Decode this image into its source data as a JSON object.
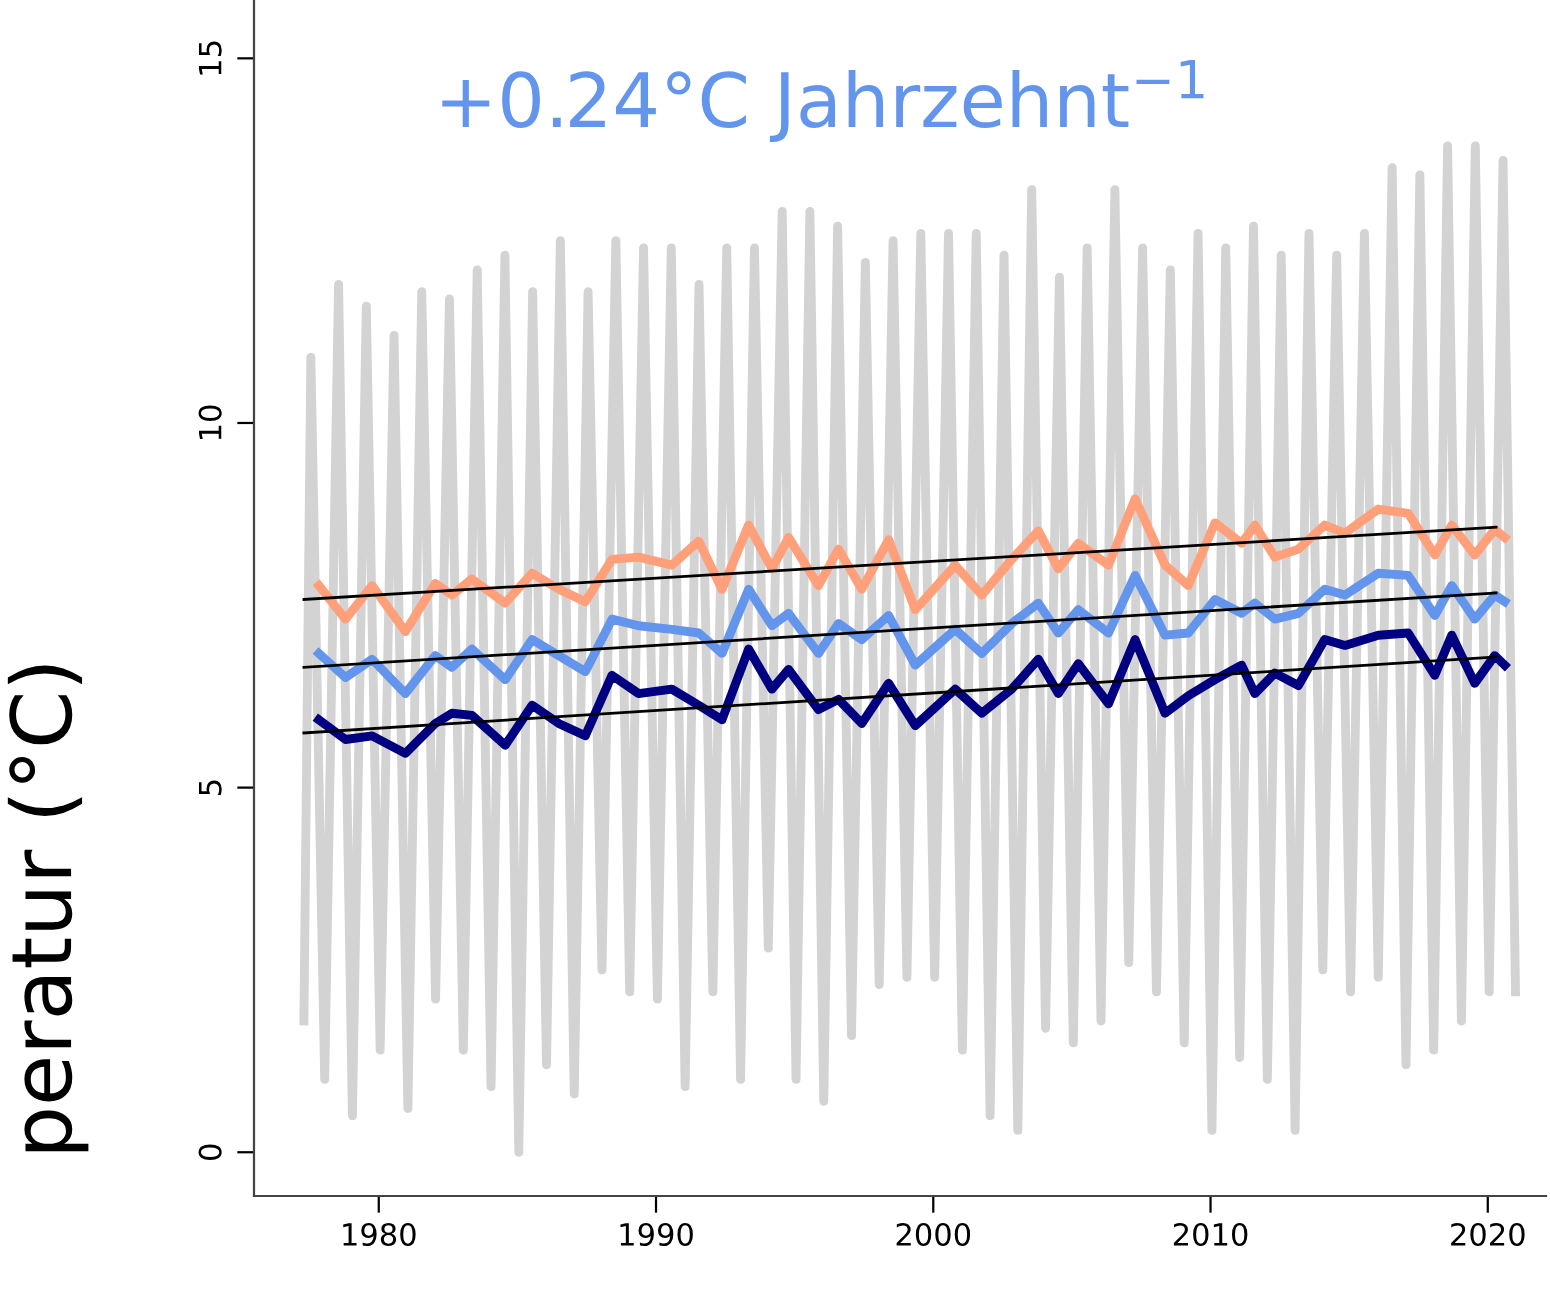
{
  "chart_data": {
    "type": "line",
    "ylabel": "peratur (°C)",
    "annotations": [
      "+0.24°C Jahrzehnt$^{−1}$"
    ],
    "xlim": [
      1975.5,
      2022.1
    ],
    "ylim": [
      -0.6,
      15.8
    ],
    "xticks": [
      1980,
      1990,
      2000,
      2010,
      2020
    ],
    "yticks": [
      0,
      5,
      10,
      15
    ],
    "series": [
      {
        "color": "#d3d3d3",
        "x": [
          1977.3,
          1977.55,
          1978.05,
          1978.55,
          1979.05,
          1979.55,
          1980.05,
          1980.55,
          1981.05,
          1981.55,
          1982.05,
          1982.55,
          1983.05,
          1983.55,
          1984.05,
          1984.55,
          1985.05,
          1985.55,
          1986.05,
          1986.55,
          1987.05,
          1987.55,
          1988.05,
          1988.55,
          1989.05,
          1989.55,
          1990.05,
          1990.55,
          1991.05,
          1991.55,
          1992.05,
          1992.55,
          1993.05,
          1993.55,
          1994.05,
          1994.55,
          1995.05,
          1995.55,
          1996.05,
          1996.55,
          1997.05,
          1997.55,
          1998.05,
          1998.55,
          1999.05,
          1999.55,
          2000.05,
          2000.55,
          2001.05,
          2001.55,
          2002.05,
          2002.55,
          2003.05,
          2003.55,
          2004.05,
          2004.55,
          2005.05,
          2005.55,
          2006.05,
          2006.55,
          2007.05,
          2007.55,
          2008.05,
          2008.55,
          2009.05,
          2009.55,
          2010.05,
          2010.55,
          2011.05,
          2011.55,
          2012.05,
          2012.55,
          2013.05,
          2013.55,
          2014.05,
          2014.55,
          2015.05,
          2015.55,
          2016.05,
          2016.55,
          2017.05,
          2017.55,
          2018.05,
          2018.55,
          2019.05,
          2019.55,
          2020.05,
          2020.55,
          2021.0
        ],
        "values": [
          1.8,
          10.9,
          1.0,
          11.9,
          0.5,
          11.6,
          1.4,
          11.2,
          0.6,
          11.8,
          2.1,
          11.7,
          1.4,
          12.1,
          0.9,
          12.3,
          0.0,
          11.8,
          1.2,
          12.5,
          0.8,
          11.8,
          2.5,
          12.5,
          2.2,
          12.4,
          2.1,
          12.4,
          0.9,
          11.9,
          2.2,
          12.4,
          1.0,
          12.4,
          2.8,
          12.9,
          1.0,
          12.9,
          0.7,
          12.7,
          1.6,
          12.2,
          2.3,
          12.5,
          2.4,
          12.6,
          2.4,
          12.6,
          1.4,
          12.6,
          0.5,
          12.3,
          0.3,
          13.2,
          1.7,
          12.0,
          1.5,
          12.4,
          1.8,
          13.2,
          2.6,
          12.4,
          2.2,
          12.1,
          1.5,
          12.6,
          0.3,
          12.4,
          1.3,
          12.7,
          1.0,
          12.3,
          0.3,
          12.6,
          2.5,
          12.3,
          2.2,
          12.6,
          2.4,
          13.5,
          1.2,
          13.4,
          1.4,
          13.8,
          1.8,
          13.8,
          2.2,
          13.6,
          2.2
        ]
      },
      {
        "color": "#ffa07a",
        "x": [
          1977.84,
          1978.8,
          1979.76,
          1980.96,
          1982.04,
          1982.64,
          1983.36,
          1984.56,
          1985.53,
          1986.49,
          1987.45,
          1988.41,
          1989.37,
          1990.57,
          1991.54,
          1992.38,
          1993.34,
          1994.18,
          1994.78,
          1995.86,
          1996.58,
          1997.42,
          1998.39,
          1999.35,
          2000.79,
          2001.75,
          2002.83,
          2003.79,
          2004.51,
          2005.23,
          2006.32,
          2007.28,
          2008.36,
          2009.2,
          2010.16,
          2011.12,
          2011.6,
          2012.32,
          2013.17,
          2014.12,
          2014.85,
          2016.05,
          2017.13,
          2018.09,
          2018.7,
          2019.53,
          2020.25,
          2020.61
        ],
        "values": [
          7.77,
          7.31,
          7.77,
          7.14,
          7.8,
          7.64,
          7.86,
          7.53,
          7.94,
          7.72,
          7.55,
          8.13,
          8.16,
          8.05,
          8.38,
          7.72,
          8.6,
          8.0,
          8.43,
          7.77,
          8.27,
          7.72,
          8.4,
          7.44,
          8.05,
          7.64,
          8.13,
          8.52,
          8.0,
          8.35,
          8.05,
          8.96,
          8.05,
          7.77,
          8.63,
          8.35,
          8.6,
          8.16,
          8.27,
          8.6,
          8.49,
          8.82,
          8.76,
          8.19,
          8.6,
          8.19,
          8.54,
          8.43
        ]
      },
      {
        "color": "#6495ed",
        "x": [
          1977.84,
          1978.8,
          1979.76,
          1980.96,
          1982.04,
          1982.64,
          1983.36,
          1984.56,
          1985.53,
          1986.49,
          1987.45,
          1988.41,
          1989.37,
          1990.57,
          1991.54,
          1992.38,
          1993.34,
          1994.18,
          1994.78,
          1995.86,
          1996.58,
          1997.42,
          1998.39,
          1999.35,
          2000.79,
          2001.75,
          2002.83,
          2003.79,
          2004.51,
          2005.23,
          2006.32,
          2007.28,
          2008.36,
          2009.2,
          2010.16,
          2011.12,
          2011.6,
          2012.32,
          2013.17,
          2014.12,
          2014.85,
          2016.05,
          2017.13,
          2018.09,
          2018.7,
          2019.53,
          2020.25,
          2020.61
        ],
        "values": [
          6.84,
          6.51,
          6.76,
          6.29,
          6.81,
          6.65,
          6.9,
          6.48,
          7.03,
          6.81,
          6.59,
          7.31,
          7.22,
          7.17,
          7.12,
          6.84,
          7.72,
          7.22,
          7.39,
          6.84,
          7.25,
          7.03,
          7.36,
          6.68,
          7.17,
          6.84,
          7.25,
          7.53,
          7.12,
          7.44,
          7.12,
          7.91,
          7.09,
          7.12,
          7.58,
          7.39,
          7.53,
          7.31,
          7.39,
          7.72,
          7.64,
          7.94,
          7.91,
          7.36,
          7.77,
          7.31,
          7.64,
          7.55
        ]
      },
      {
        "color": "#000080",
        "x": [
          1977.84,
          1978.8,
          1979.76,
          1980.96,
          1982.04,
          1982.64,
          1983.36,
          1984.56,
          1985.53,
          1986.49,
          1987.45,
          1988.41,
          1989.37,
          1990.57,
          1991.54,
          1992.38,
          1993.34,
          1994.18,
          1994.78,
          1995.86,
          1996.58,
          1997.42,
          1998.39,
          1999.35,
          2000.79,
          2001.75,
          2002.83,
          2003.79,
          2004.51,
          2005.23,
          2006.32,
          2007.28,
          2008.36,
          2009.2,
          2010.16,
          2011.12,
          2011.6,
          2012.32,
          2013.17,
          2014.12,
          2014.85,
          2016.05,
          2017.13,
          2018.09,
          2018.7,
          2019.53,
          2020.25,
          2020.61
        ],
        "values": [
          5.93,
          5.66,
          5.71,
          5.47,
          5.88,
          6.02,
          5.99,
          5.58,
          6.13,
          5.88,
          5.71,
          6.54,
          6.29,
          6.35,
          6.13,
          5.93,
          6.9,
          6.35,
          6.62,
          6.07,
          6.21,
          5.88,
          6.43,
          5.85,
          6.35,
          6.02,
          6.35,
          6.76,
          6.29,
          6.7,
          6.15,
          7.03,
          6.02,
          6.26,
          6.48,
          6.68,
          6.29,
          6.57,
          6.4,
          7.03,
          6.95,
          7.09,
          7.12,
          6.54,
          7.09,
          6.43,
          6.81,
          6.68
        ]
      },
      {
        "color": "#000000",
        "x": [
          1977.3,
          2020.3
        ],
        "values": [
          7.58,
          8.57
        ]
      },
      {
        "color": "#000000",
        "x": [
          1977.3,
          2020.3
        ],
        "values": [
          6.65,
          7.67
        ]
      },
      {
        "color": "#000000",
        "x": [
          1977.3,
          2020.3
        ],
        "values": [
          5.75,
          6.79
        ]
      }
    ]
  }
}
